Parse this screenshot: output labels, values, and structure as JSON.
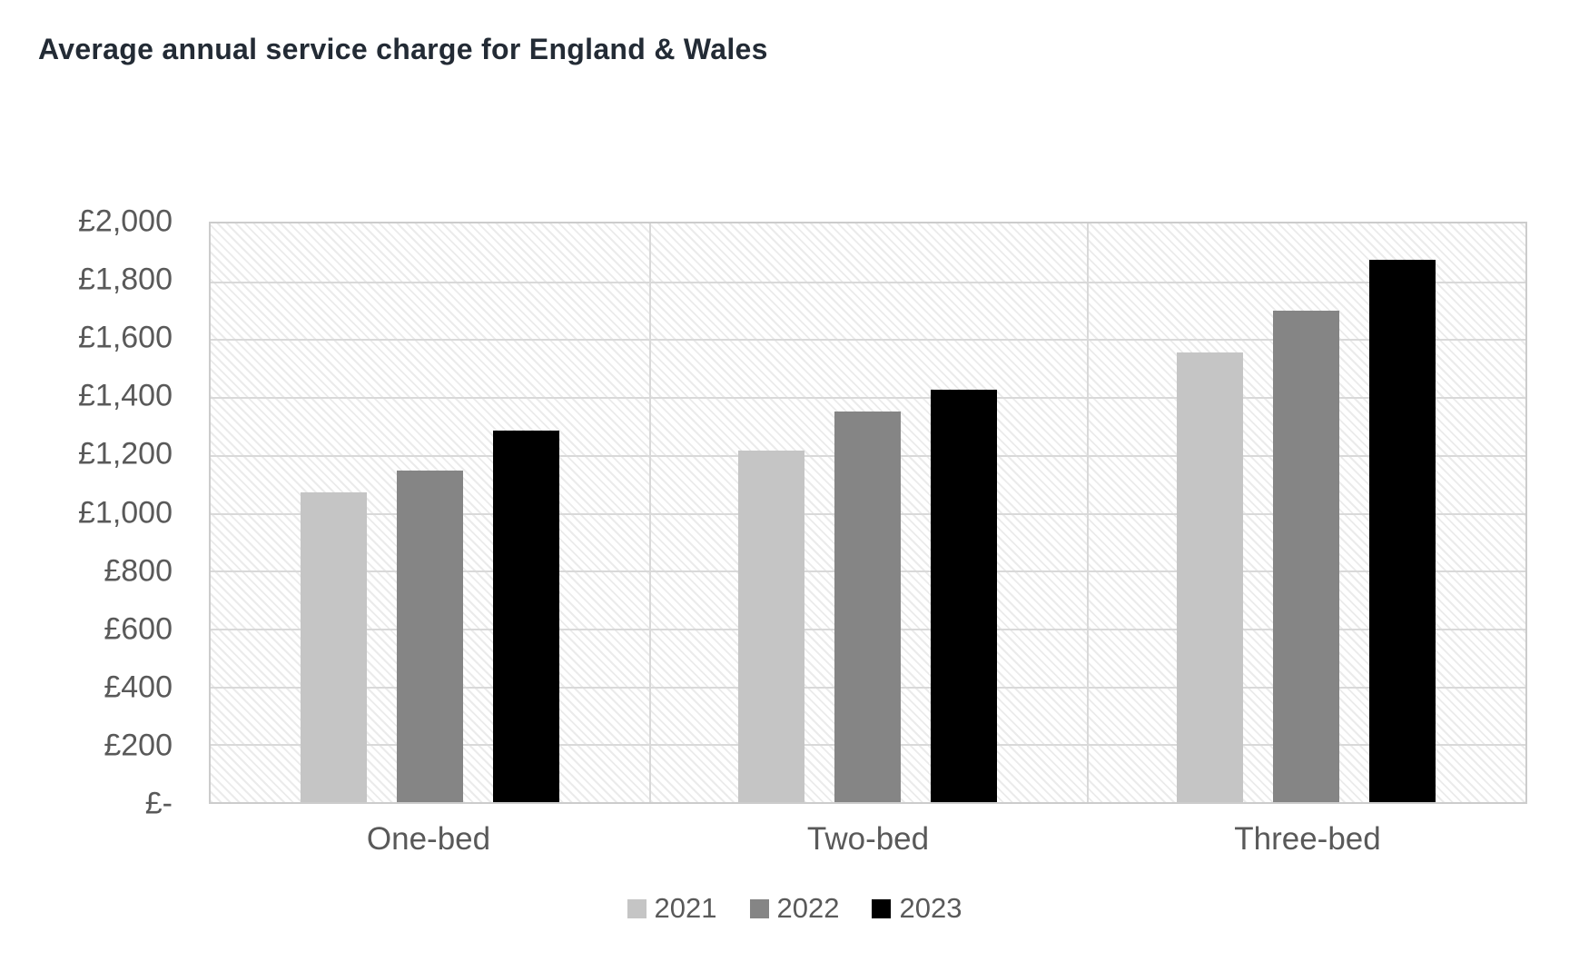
{
  "title": "Average annual service charge for England & Wales",
  "chart_data": {
    "type": "bar",
    "title": "Average annual service charge for England & Wales",
    "categories": [
      "One-bed",
      "Two-bed",
      "Three-bed"
    ],
    "series": [
      {
        "name": "2021",
        "color": "#C5C5C5",
        "values": [
          1070,
          1215,
          1555
        ]
      },
      {
        "name": "2022",
        "color": "#858585",
        "values": [
          1145,
          1350,
          1700
        ]
      },
      {
        "name": "2023",
        "color": "#000000",
        "values": [
          1285,
          1425,
          1875
        ]
      }
    ],
    "y_axis": {
      "min": 0,
      "max": 2000,
      "step": 200,
      "tick_labels": [
        "£-",
        "£200",
        "£400",
        "£600",
        "£800",
        "£1,000",
        "£1,200",
        "£1,400",
        "£1,600",
        "£1,800",
        "£2,000"
      ]
    },
    "x_axis": {
      "labels": [
        "One-bed",
        "Two-bed",
        "Three-bed"
      ]
    },
    "legend": {
      "position": "bottom",
      "entries": [
        "2021",
        "2022",
        "2023"
      ]
    },
    "grid": true,
    "plot_background": "diagonal-hatch"
  },
  "colors": {
    "background": "#FFFFFF",
    "title_text": "#232B35",
    "axis_text": "#595959",
    "gridline": "#D9D9D9",
    "plot_border": "#CCCCCC",
    "hatch_line": "rgba(0,0,0,0.08)",
    "series_2021": "#C5C5C5",
    "series_2022": "#858585",
    "series_2023": "#000000"
  }
}
